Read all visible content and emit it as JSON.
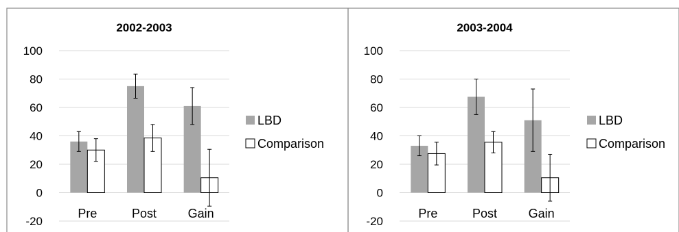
{
  "chart_data": [
    {
      "type": "bar",
      "title": "2002-2003",
      "categories": [
        "Pre",
        "Post",
        "Gain"
      ],
      "ylim": [
        -20,
        100
      ],
      "yticks": [
        -20,
        0,
        20,
        40,
        60,
        80,
        100
      ],
      "grid": true,
      "legend_position": "right",
      "series": [
        {
          "name": "LBD",
          "color": "#a6a6a6",
          "values": [
            36,
            75,
            61
          ],
          "error": [
            7,
            8.5,
            13
          ]
        },
        {
          "name": "Comparison",
          "color": "#ffffff",
          "values": [
            30,
            38.5,
            10.5
          ],
          "error": [
            8,
            9.5,
            20
          ]
        }
      ]
    },
    {
      "type": "bar",
      "title": "2003-2004",
      "categories": [
        "Pre",
        "Post",
        "Gain"
      ],
      "ylim": [
        -20,
        100
      ],
      "yticks": [
        -20,
        0,
        20,
        40,
        60,
        80,
        100
      ],
      "grid": true,
      "legend_position": "right",
      "series": [
        {
          "name": "LBD",
          "color": "#a6a6a6",
          "values": [
            33,
            67.5,
            51
          ],
          "error": [
            7,
            12.5,
            22
          ]
        },
        {
          "name": "Comparison",
          "color": "#ffffff",
          "values": [
            27.5,
            35.5,
            10.5
          ],
          "error": [
            8,
            7.5,
            16.5
          ]
        }
      ]
    }
  ]
}
